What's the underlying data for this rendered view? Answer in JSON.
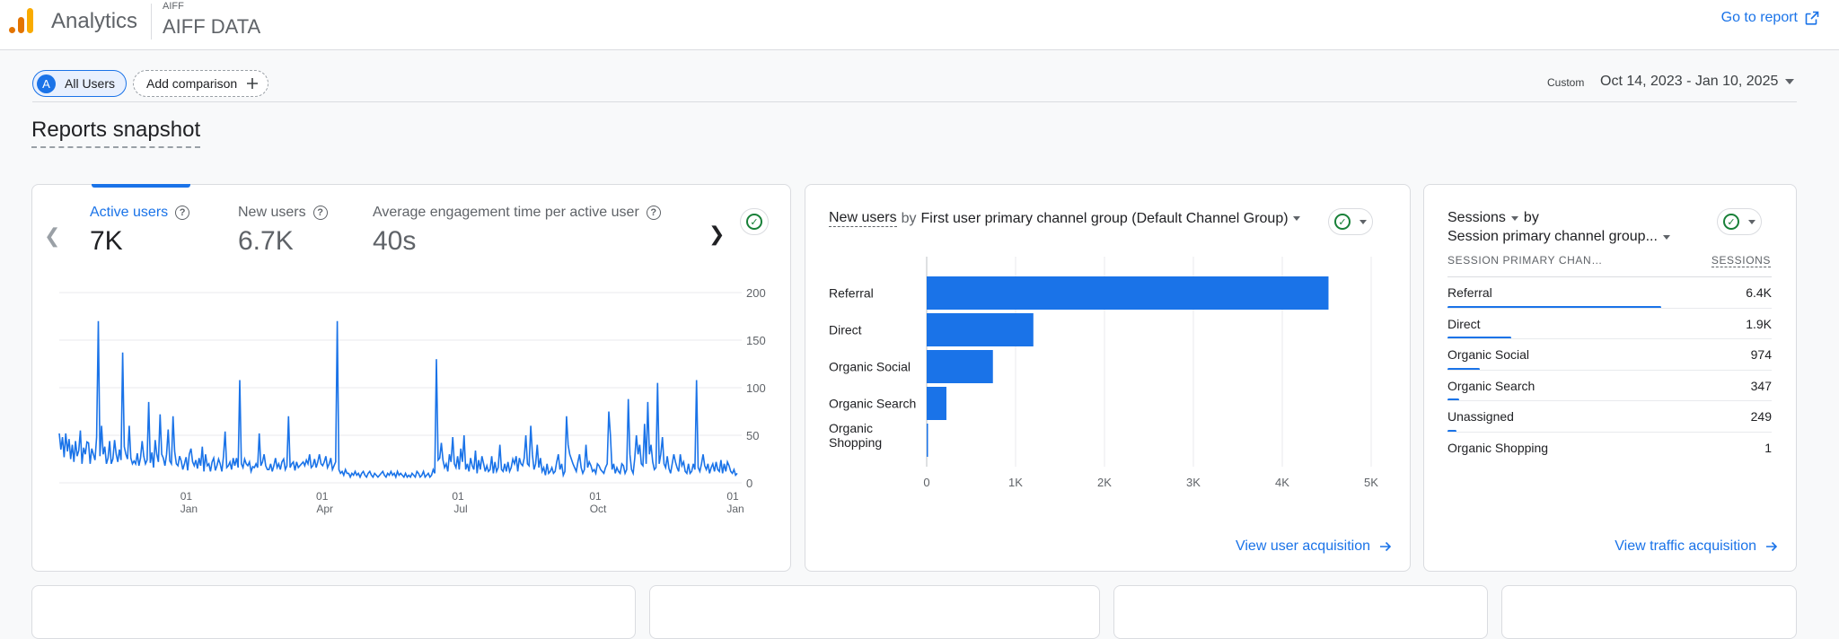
{
  "header": {
    "app_name": "Analytics",
    "property_account": "AIFF",
    "property_name": "AIFF DATA",
    "goto_report": "Go to report"
  },
  "toolbar": {
    "segment_avatar": "A",
    "segment_label": "All Users",
    "add_comparison": "Add comparison",
    "date_label": "Custom",
    "date_range": "Oct 14, 2023 - Jan 10, 2025"
  },
  "page_title": "Reports snapshot",
  "overview_card": {
    "metrics": [
      {
        "label": "Active users",
        "value": "7K"
      },
      {
        "label": "New users",
        "value": "6.7K"
      },
      {
        "label": "Average engagement time per active user",
        "value": "40s"
      }
    ],
    "chart_data": {
      "type": "line",
      "series": [
        {
          "values": [
            52,
            35,
            48,
            27,
            52,
            33,
            46,
            25,
            40,
            22,
            44,
            28,
            34,
            55,
            20,
            37,
            30,
            43,
            42,
            20,
            36,
            30,
            24,
            48,
            170,
            28,
            60,
            30,
            38,
            20,
            26,
            44,
            20,
            25,
            45,
            30,
            22,
            35,
            24,
            137,
            38,
            30,
            25,
            60,
            26,
            20,
            23,
            20,
            31,
            18,
            26,
            44,
            28,
            20,
            24,
            85,
            21,
            32,
            16,
            45,
            30,
            22,
            72,
            30,
            26,
            18,
            30,
            56,
            23,
            20,
            70,
            33,
            20,
            18,
            28,
            23,
            14,
            20,
            27,
            13,
            30,
            36,
            22,
            18,
            24,
            15,
            26,
            18,
            38,
            12,
            30,
            18,
            20,
            12,
            22,
            26,
            13,
            18,
            25,
            20,
            12,
            28,
            54,
            16,
            18,
            22,
            14,
            26,
            18,
            26,
            16,
            108,
            20,
            16,
            25,
            20,
            18,
            22,
            12,
            17,
            16,
            20,
            16,
            52,
            18,
            22,
            30,
            18,
            14,
            14,
            20,
            12,
            18,
            26,
            16,
            20,
            14,
            22,
            25,
            14,
            18,
            70,
            16,
            20,
            22,
            13,
            22,
            16,
            18,
            20,
            22,
            18,
            24,
            20,
            30,
            16,
            18,
            25,
            16,
            22,
            30,
            20,
            18,
            22,
            28,
            16,
            20,
            26,
            14,
            18,
            22,
            170,
            14,
            10,
            12,
            8,
            14,
            10,
            10,
            6,
            10,
            8,
            12,
            8,
            10,
            6,
            10,
            12,
            8,
            6,
            10,
            12,
            8,
            6,
            10,
            8,
            6,
            8,
            10,
            12,
            8,
            6,
            10,
            8,
            12,
            8,
            10,
            6,
            12,
            8,
            10,
            8,
            6,
            10,
            6,
            8,
            6,
            10,
            8,
            6,
            12,
            10,
            6,
            8,
            12,
            6,
            8,
            10,
            6,
            8,
            14,
            10,
            130,
            24,
            26,
            42,
            24,
            16,
            20,
            12,
            30,
            22,
            48,
            20,
            16,
            28,
            14,
            36,
            22,
            50,
            14,
            20,
            12,
            26,
            18,
            14,
            34,
            10,
            24,
            14,
            28,
            20,
            12,
            18,
            12,
            14,
            28,
            10,
            22,
            12,
            16,
            40,
            14,
            12,
            20,
            12,
            22,
            12,
            16,
            25,
            20,
            28,
            12,
            26,
            20,
            18,
            26,
            50,
            20,
            18,
            60,
            30,
            14,
            20,
            40,
            16,
            26,
            12,
            16,
            8,
            20,
            10,
            12,
            16,
            10,
            12,
            22,
            30,
            14,
            20,
            8,
            12,
            70,
            40,
            30,
            25,
            20,
            16,
            12,
            22,
            30,
            16,
            10,
            14,
            40,
            16,
            22,
            18,
            12,
            14,
            10,
            20,
            18,
            14,
            12,
            10,
            16,
            20,
            75,
            50,
            14,
            20,
            10,
            16,
            12,
            10,
            20,
            18,
            10,
            14,
            88,
            30,
            14,
            10,
            26,
            50,
            30,
            40,
            20,
            18,
            62,
            20,
            85,
            30,
            40,
            22,
            14,
            16,
            105,
            20,
            30,
            48,
            20,
            16,
            28,
            15,
            10,
            20,
            30,
            22,
            16,
            12,
            30,
            18,
            22,
            12,
            10,
            20,
            10,
            12,
            20,
            14,
            108,
            16,
            12,
            20,
            30,
            18,
            14,
            20,
            10,
            16,
            20,
            12,
            22,
            14,
            12,
            24,
            10,
            20,
            12,
            22,
            18,
            12,
            10,
            14,
            8,
            10
          ]
        }
      ],
      "x_labels": [
        {
          "day": "01",
          "month": "Jan"
        },
        {
          "day": "01",
          "month": "Apr"
        },
        {
          "day": "01",
          "month": "Jul"
        },
        {
          "day": "01",
          "month": "Oct"
        },
        {
          "day": "01",
          "month": "Jan"
        }
      ],
      "y_ticks": [
        0,
        50,
        100,
        150,
        200
      ],
      "ylim": [
        0,
        200
      ],
      "color": "#1a73e8"
    }
  },
  "channel_card": {
    "title_metric": "New users",
    "title_by": "by",
    "title_dimension": "First user primary channel group (Default Channel Group)",
    "view_link": "View user acquisition",
    "chart_data": {
      "type": "bar",
      "orientation": "horizontal",
      "categories": [
        [
          "Referral"
        ],
        [
          "Direct"
        ],
        [
          "Organic Social"
        ],
        [
          "Organic Search"
        ],
        [
          "Organic",
          "Shopping"
        ]
      ],
      "values": [
        4520,
        1200,
        745,
        222,
        1
      ],
      "x_ticks": [
        "0",
        "1K",
        "2K",
        "3K",
        "4K",
        "5K"
      ],
      "xlim": [
        0,
        5000
      ],
      "color": "#1a73e8"
    }
  },
  "sessions_card": {
    "title_metric": "Sessions",
    "title_by": "by",
    "title_dimension": "Session primary channel group...",
    "col_dimension": "SESSION PRIMARY CHAN…",
    "col_metric": "SESSIONS",
    "view_link": "View traffic acquisition",
    "rows": [
      {
        "name": "Referral",
        "value": "6.4K",
        "fraction": 1.0
      },
      {
        "name": "Direct",
        "value": "1.9K",
        "fraction": 0.297
      },
      {
        "name": "Organic Social",
        "value": "974",
        "fraction": 0.152
      },
      {
        "name": "Organic Search",
        "value": "347",
        "fraction": 0.054
      },
      {
        "name": "Unassigned",
        "value": "249",
        "fraction": 0.039
      },
      {
        "name": "Organic Shopping",
        "value": "1",
        "fraction": 0.0
      }
    ]
  }
}
